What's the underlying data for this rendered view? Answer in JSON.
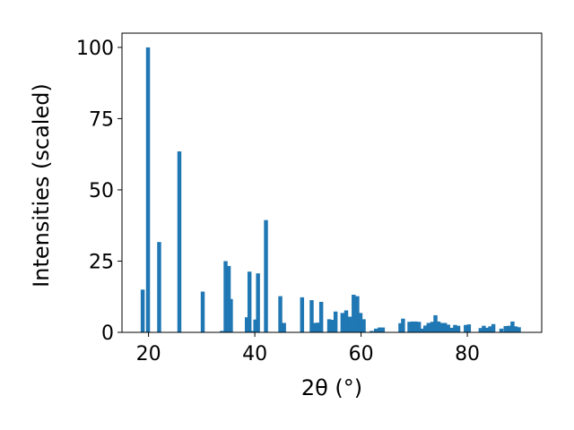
{
  "chart_data": {
    "type": "bar",
    "xlabel": "2θ (°)",
    "ylabel": "Intensities (scaled)",
    "xlim": [
      15,
      94
    ],
    "ylim": [
      0,
      105
    ],
    "x_ticks": [
      20,
      40,
      60,
      80
    ],
    "y_ticks": [
      0,
      25,
      50,
      75,
      100
    ],
    "grid": false,
    "bar_color": "#1f77b4",
    "bar_width": 0.75,
    "x": [
      18.9,
      19.9,
      22.0,
      25.8,
      30.2,
      33.8,
      34.5,
      35.1,
      35.5,
      38.5,
      39.0,
      39.6,
      40.1,
      40.6,
      42.1,
      44.8,
      45.5,
      48.9,
      50.7,
      51.3,
      51.8,
      52.5,
      54.0,
      54.6,
      55.2,
      56.5,
      57.2,
      57.9,
      58.6,
      59.3,
      59.9,
      60.5,
      62.0,
      62.8,
      63.5,
      64.1,
      67.4,
      67.9,
      69.1,
      69.7,
      70.3,
      70.9,
      71.5,
      72.1,
      72.7,
      73.4,
      74.0,
      74.6,
      75.2,
      75.8,
      76.4,
      77.1,
      77.7,
      78.3,
      79.7,
      80.3,
      82.5,
      83.1,
      83.7,
      84.3,
      84.9,
      86.4,
      87.2,
      87.8,
      88.5,
      89.1,
      89.7
    ],
    "values": [
      15,
      100,
      31.7,
      63.5,
      14.3,
      0.5,
      25,
      23.3,
      11.7,
      5.3,
      21.3,
      0.5,
      4.5,
      20.7,
      39.4,
      12.7,
      3.3,
      12.3,
      11.3,
      3.3,
      3.4,
      10.7,
      4.6,
      4.4,
      7.3,
      6.8,
      7.7,
      5.5,
      13.2,
      12.7,
      6.8,
      4.6,
      0.5,
      1.3,
      1.7,
      1.7,
      3.2,
      4.8,
      3.7,
      3.8,
      3.8,
      3.7,
      1.3,
      2.4,
      3.3,
      3.7,
      6.0,
      3.8,
      3.3,
      3.3,
      2.7,
      1.6,
      2.6,
      2.3,
      2.6,
      2.8,
      1.5,
      2.3,
      1.6,
      2.1,
      2.9,
      1.3,
      2.2,
      2.3,
      3.8,
      2.1,
      1.8
    ]
  }
}
